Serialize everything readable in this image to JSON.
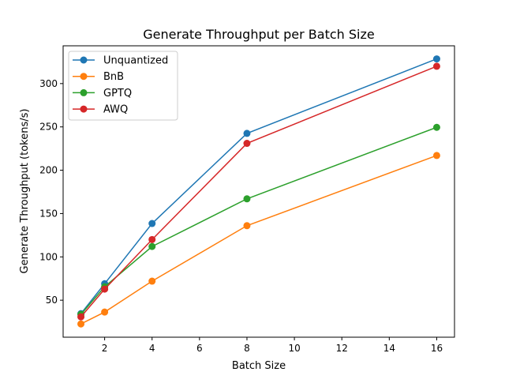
{
  "chart_data": {
    "type": "line",
    "title": "Generate Throughput per Batch Size",
    "xlabel": "Batch Size",
    "ylabel": "Generate Throughput (tokens/s)",
    "x": [
      1,
      2,
      4,
      8,
      16
    ],
    "xlim": [
      0.25,
      16.75
    ],
    "ylim": [
      7.3,
      343.6
    ],
    "xticks": [
      2,
      4,
      6,
      8,
      10,
      12,
      14,
      16
    ],
    "yticks": [
      50,
      100,
      150,
      200,
      250,
      300
    ],
    "grid": false,
    "legend": "top-left",
    "series": [
      {
        "name": "Unquantized",
        "color": "#1f77b4",
        "values": [
          34.5,
          69,
          138.5,
          242.5,
          328.5
        ]
      },
      {
        "name": "BnB",
        "color": "#ff7f0e",
        "values": [
          22.6,
          36.3,
          72,
          136,
          217
        ]
      },
      {
        "name": "GPTQ",
        "color": "#2ca02c",
        "values": [
          33.6,
          65.5,
          112,
          167,
          249.5
        ]
      },
      {
        "name": "AWQ",
        "color": "#d62728",
        "values": [
          30.8,
          62.8,
          120,
          231,
          320
        ]
      }
    ]
  }
}
